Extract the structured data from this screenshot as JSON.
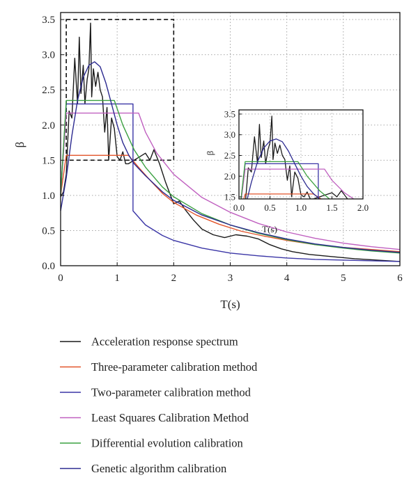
{
  "chart_data": {
    "type": "line",
    "xlabel": "T(s)",
    "ylabel": "β",
    "xlim": [
      0,
      6
    ],
    "ylim": [
      0,
      3.6
    ],
    "x_ticks": [
      "0",
      "1",
      "2",
      "3",
      "4",
      "5",
      "6"
    ],
    "y_ticks": [
      "0.0",
      "0.5",
      "1.0",
      "1.5",
      "2.0",
      "2.5",
      "3.0",
      "3.5"
    ],
    "grid": "dotted",
    "legend_position": "below",
    "zoom_box": {
      "x": [
        0.1,
        2.0
      ],
      "y": [
        1.5,
        3.5
      ]
    },
    "inset": {
      "xlabel": "T(s)",
      "ylabel": "β",
      "xlim": [
        0,
        2
      ],
      "ylim": [
        1.45,
        3.6
      ],
      "x_ticks": [
        "0.0",
        "0.5",
        "1.0",
        "1.5",
        "2.0"
      ],
      "y_ticks": [
        "1.5",
        "2.0",
        "2.5",
        "3.0",
        "3.5"
      ]
    },
    "series": [
      {
        "name": "Acceleration response spectrum",
        "color": "#1a1a1a",
        "x": [
          0,
          0.05,
          0.1,
          0.15,
          0.2,
          0.25,
          0.3,
          0.33,
          0.36,
          0.4,
          0.43,
          0.47,
          0.5,
          0.53,
          0.55,
          0.58,
          0.62,
          0.66,
          0.7,
          0.74,
          0.78,
          0.82,
          0.85,
          0.9,
          0.95,
          1.0,
          1.05,
          1.1,
          1.15,
          1.2,
          1.3,
          1.4,
          1.5,
          1.58,
          1.65,
          1.75,
          1.85,
          2.0,
          2.1,
          2.2,
          2.35,
          2.5,
          2.7,
          2.9,
          3.1,
          3.3,
          3.5,
          3.7,
          3.9,
          4.1,
          4.4,
          4.8,
          5.2,
          5.6,
          6.0
        ],
        "y": [
          0.98,
          1.05,
          1.3,
          2.2,
          2.1,
          2.95,
          2.3,
          3.25,
          2.45,
          2.85,
          2.3,
          2.65,
          2.8,
          3.45,
          2.4,
          2.8,
          2.55,
          2.75,
          2.5,
          2.4,
          1.9,
          2.25,
          1.5,
          2.1,
          1.95,
          1.55,
          1.5,
          1.62,
          1.45,
          1.45,
          1.5,
          1.55,
          1.6,
          1.5,
          1.65,
          1.45,
          1.2,
          0.88,
          0.92,
          0.8,
          0.65,
          0.52,
          0.44,
          0.4,
          0.44,
          0.42,
          0.38,
          0.3,
          0.24,
          0.2,
          0.16,
          0.13,
          0.1,
          0.08,
          0.06
        ]
      },
      {
        "name": "Three-parameter calibration method",
        "color": "#e2542a",
        "x": [
          0,
          0.1,
          1.2,
          1.4,
          1.6,
          1.8,
          2.0,
          2.4,
          2.8,
          3.2,
          3.6,
          4.0,
          4.5,
          5.0,
          5.5,
          6.0
        ],
        "y": [
          1.0,
          1.57,
          1.57,
          1.38,
          1.2,
          1.03,
          0.9,
          0.72,
          0.59,
          0.49,
          0.42,
          0.36,
          0.3,
          0.26,
          0.23,
          0.2
        ]
      },
      {
        "name": "Two-parameter calibration method",
        "color": "#3a35a6",
        "x": [
          0,
          0.1,
          1.28,
          1.28,
          1.5,
          1.8,
          2.0,
          2.5,
          3.0,
          3.5,
          4.0,
          4.5,
          5.0,
          5.5,
          6.0
        ],
        "y": [
          1.0,
          2.3,
          2.3,
          0.78,
          0.58,
          0.43,
          0.36,
          0.25,
          0.18,
          0.14,
          0.11,
          0.09,
          0.08,
          0.07,
          0.06
        ]
      },
      {
        "name": "Least Squares Calibration Method",
        "color": "#c060c0",
        "x": [
          0,
          0.1,
          1.38,
          1.5,
          1.7,
          2.0,
          2.5,
          3.0,
          3.5,
          4.0,
          4.5,
          5.0,
          5.5,
          6.0
        ],
        "y": [
          1.0,
          2.17,
          2.17,
          1.9,
          1.6,
          1.3,
          0.97,
          0.76,
          0.6,
          0.48,
          0.39,
          0.32,
          0.27,
          0.23
        ]
      },
      {
        "name": "Differential evolution calibration",
        "color": "#3aa040",
        "x": [
          0,
          0.1,
          0.95,
          1.1,
          1.3,
          1.5,
          1.8,
          2.0,
          2.5,
          3.0,
          3.5,
          4.0,
          4.5,
          5.0,
          5.5,
          6.0
        ],
        "y": [
          1.0,
          2.35,
          2.35,
          2.0,
          1.65,
          1.4,
          1.12,
          0.98,
          0.74,
          0.58,
          0.46,
          0.37,
          0.3,
          0.25,
          0.21,
          0.18
        ]
      },
      {
        "name": "Genetic algorithm calibration",
        "color": "#2c2a90",
        "x": [
          0,
          0.1,
          0.2,
          0.3,
          0.4,
          0.5,
          0.6,
          0.7,
          0.8,
          0.9,
          1.0,
          1.1,
          1.2,
          1.3,
          1.5,
          1.8,
          2.0,
          2.5,
          3.0,
          3.5,
          4.0,
          4.5,
          5.0,
          5.5,
          6.0
        ],
        "y": [
          0.78,
          1.25,
          1.85,
          2.35,
          2.68,
          2.85,
          2.9,
          2.83,
          2.6,
          2.3,
          2.0,
          1.75,
          1.58,
          1.45,
          1.28,
          1.05,
          0.93,
          0.72,
          0.58,
          0.47,
          0.38,
          0.31,
          0.26,
          0.22,
          0.19
        ]
      }
    ]
  }
}
